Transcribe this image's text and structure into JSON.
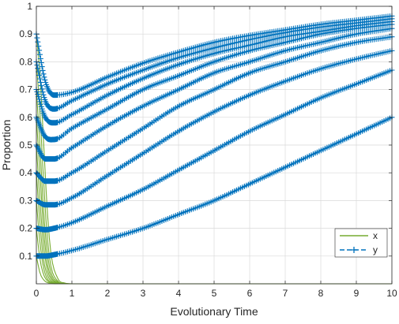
{
  "chart_data": {
    "type": "line",
    "title": "",
    "xlabel": "Evolutionary Time",
    "ylabel": "Proportion",
    "xlim": [
      0,
      10
    ],
    "ylim": [
      0,
      1
    ],
    "x_ticks": [
      "0",
      "1",
      "2",
      "3",
      "4",
      "5",
      "6",
      "7",
      "8",
      "9",
      "10"
    ],
    "y_ticks": [
      "0.1",
      "0.2",
      "0.3",
      "0.4",
      "0.5",
      "0.6",
      "0.7",
      "0.8",
      "0.9",
      "1"
    ],
    "grid": true,
    "legend": {
      "position": "bottom-right",
      "entries": [
        "x",
        "y"
      ]
    },
    "colors": {
      "x": "#77ac30",
      "y": "#0072bd",
      "grid": "#d9d9d9",
      "axis": "#262626"
    },
    "series": [
      {
        "name": "x",
        "style": "solid line",
        "note_initial_values": [
          0.1,
          0.2,
          0.3,
          0.4,
          0.5,
          0.6,
          0.7,
          0.8,
          0.9
        ],
        "curves": [
          {
            "x": [
              0,
              0.1,
              0.2,
              0.3,
              0.4,
              0.6,
              0.8,
              1.0,
              10
            ],
            "y": [
              0.1,
              0.04,
              0.015,
              0.005,
              0.002,
              0,
              0,
              0,
              0
            ]
          },
          {
            "x": [
              0,
              0.1,
              0.2,
              0.3,
              0.4,
              0.6,
              0.8,
              1.0,
              10
            ],
            "y": [
              0.2,
              0.09,
              0.035,
              0.012,
              0.004,
              0,
              0,
              0,
              0
            ]
          },
          {
            "x": [
              0,
              0.1,
              0.2,
              0.3,
              0.4,
              0.6,
              0.8,
              1.0,
              10
            ],
            "y": [
              0.3,
              0.15,
              0.06,
              0.02,
              0.007,
              0.001,
              0,
              0,
              0
            ]
          },
          {
            "x": [
              0,
              0.1,
              0.2,
              0.3,
              0.4,
              0.6,
              0.8,
              1.0,
              10
            ],
            "y": [
              0.4,
              0.22,
              0.09,
              0.035,
              0.012,
              0.002,
              0,
              0,
              0
            ]
          },
          {
            "x": [
              0,
              0.1,
              0.2,
              0.3,
              0.4,
              0.6,
              0.8,
              1.0,
              10
            ],
            "y": [
              0.5,
              0.3,
              0.14,
              0.055,
              0.02,
              0.003,
              0,
              0,
              0
            ]
          },
          {
            "x": [
              0,
              0.1,
              0.2,
              0.3,
              0.4,
              0.6,
              0.8,
              1.0,
              10
            ],
            "y": [
              0.6,
              0.4,
              0.2,
              0.08,
              0.03,
              0.004,
              0.001,
              0,
              0
            ]
          },
          {
            "x": [
              0,
              0.1,
              0.2,
              0.3,
              0.4,
              0.6,
              0.8,
              1.0,
              10
            ],
            "y": [
              0.7,
              0.5,
              0.27,
              0.12,
              0.045,
              0.007,
              0.001,
              0,
              0
            ]
          },
          {
            "x": [
              0,
              0.1,
              0.2,
              0.3,
              0.4,
              0.6,
              0.8,
              1.0,
              10
            ],
            "y": [
              0.8,
              0.62,
              0.38,
              0.18,
              0.07,
              0.01,
              0.002,
              0,
              0
            ]
          },
          {
            "x": [
              0,
              0.1,
              0.2,
              0.3,
              0.4,
              0.6,
              0.8,
              1.0,
              10
            ],
            "y": [
              0.9,
              0.76,
              0.52,
              0.28,
              0.12,
              0.02,
              0.003,
              0,
              0
            ]
          }
        ]
      },
      {
        "name": "y",
        "style": "dashed line with + markers",
        "curves": [
          {
            "x": [
              0,
              0.25,
              0.5,
              1,
              2,
              3,
              4,
              5,
              6,
              7,
              8,
              9,
              10
            ],
            "y": [
              0.1,
              0.1,
              0.105,
              0.12,
              0.16,
              0.2,
              0.25,
              0.3,
              0.36,
              0.42,
              0.48,
              0.54,
              0.6
            ]
          },
          {
            "x": [
              0,
              0.25,
              0.5,
              1,
              2,
              3,
              4,
              5,
              6,
              7,
              8,
              9,
              10
            ],
            "y": [
              0.2,
              0.195,
              0.2,
              0.22,
              0.28,
              0.34,
              0.41,
              0.48,
              0.55,
              0.61,
              0.67,
              0.72,
              0.77
            ]
          },
          {
            "x": [
              0,
              0.25,
              0.5,
              1,
              2,
              3,
              4,
              5,
              6,
              7,
              8,
              9,
              10
            ],
            "y": [
              0.3,
              0.285,
              0.285,
              0.31,
              0.39,
              0.47,
              0.55,
              0.62,
              0.68,
              0.73,
              0.775,
              0.81,
              0.84
            ]
          },
          {
            "x": [
              0,
              0.25,
              0.5,
              1,
              2,
              3,
              4,
              5,
              6,
              7,
              8,
              9,
              10
            ],
            "y": [
              0.4,
              0.37,
              0.37,
              0.4,
              0.48,
              0.56,
              0.64,
              0.7,
              0.76,
              0.8,
              0.84,
              0.87,
              0.89
            ]
          },
          {
            "x": [
              0,
              0.25,
              0.5,
              1,
              2,
              3,
              4,
              5,
              6,
              7,
              8,
              9,
              10
            ],
            "y": [
              0.5,
              0.45,
              0.45,
              0.49,
              0.57,
              0.64,
              0.7,
              0.76,
              0.8,
              0.84,
              0.87,
              0.9,
              0.92
            ]
          },
          {
            "x": [
              0,
              0.25,
              0.5,
              1,
              2,
              3,
              4,
              5,
              6,
              7,
              8,
              9,
              10
            ],
            "y": [
              0.6,
              0.53,
              0.52,
              0.56,
              0.63,
              0.7,
              0.75,
              0.8,
              0.84,
              0.87,
              0.9,
              0.92,
              0.935
            ]
          },
          {
            "x": [
              0,
              0.25,
              0.5,
              1,
              2,
              3,
              4,
              5,
              6,
              7,
              8,
              9,
              10
            ],
            "y": [
              0.7,
              0.6,
              0.58,
              0.61,
              0.68,
              0.74,
              0.79,
              0.83,
              0.86,
              0.89,
              0.91,
              0.93,
              0.945
            ]
          },
          {
            "x": [
              0,
              0.25,
              0.5,
              1,
              2,
              3,
              4,
              5,
              6,
              7,
              8,
              9,
              10
            ],
            "y": [
              0.8,
              0.66,
              0.63,
              0.66,
              0.72,
              0.77,
              0.815,
              0.85,
              0.88,
              0.905,
              0.925,
              0.94,
              0.955
            ]
          },
          {
            "x": [
              0,
              0.25,
              0.5,
              1,
              2,
              3,
              4,
              5,
              6,
              7,
              8,
              9,
              10
            ],
            "y": [
              0.9,
              0.73,
              0.68,
              0.69,
              0.745,
              0.795,
              0.835,
              0.87,
              0.895,
              0.915,
              0.935,
              0.95,
              0.965
            ]
          }
        ]
      }
    ]
  }
}
